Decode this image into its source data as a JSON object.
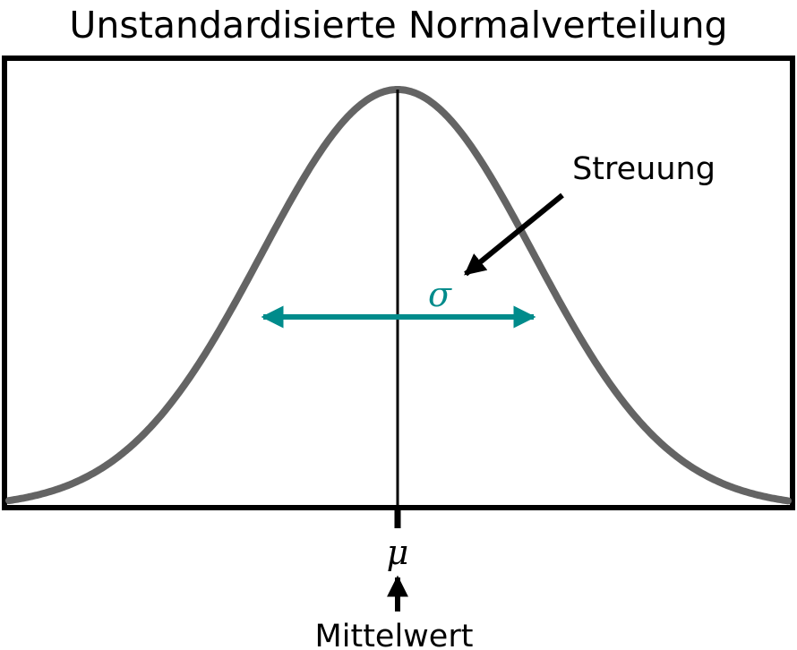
{
  "diagram": {
    "title": "Unstandardisierte Normalverteilung",
    "annotations": {
      "spread_label": "Streuung",
      "sigma_symbol": "σ",
      "mu_symbol": "μ",
      "mean_label": "Mittelwert"
    },
    "colors": {
      "curve": "#646464",
      "sigma_arrow": "#008B8B",
      "frame": "#000000",
      "text": "#000000"
    }
  }
}
